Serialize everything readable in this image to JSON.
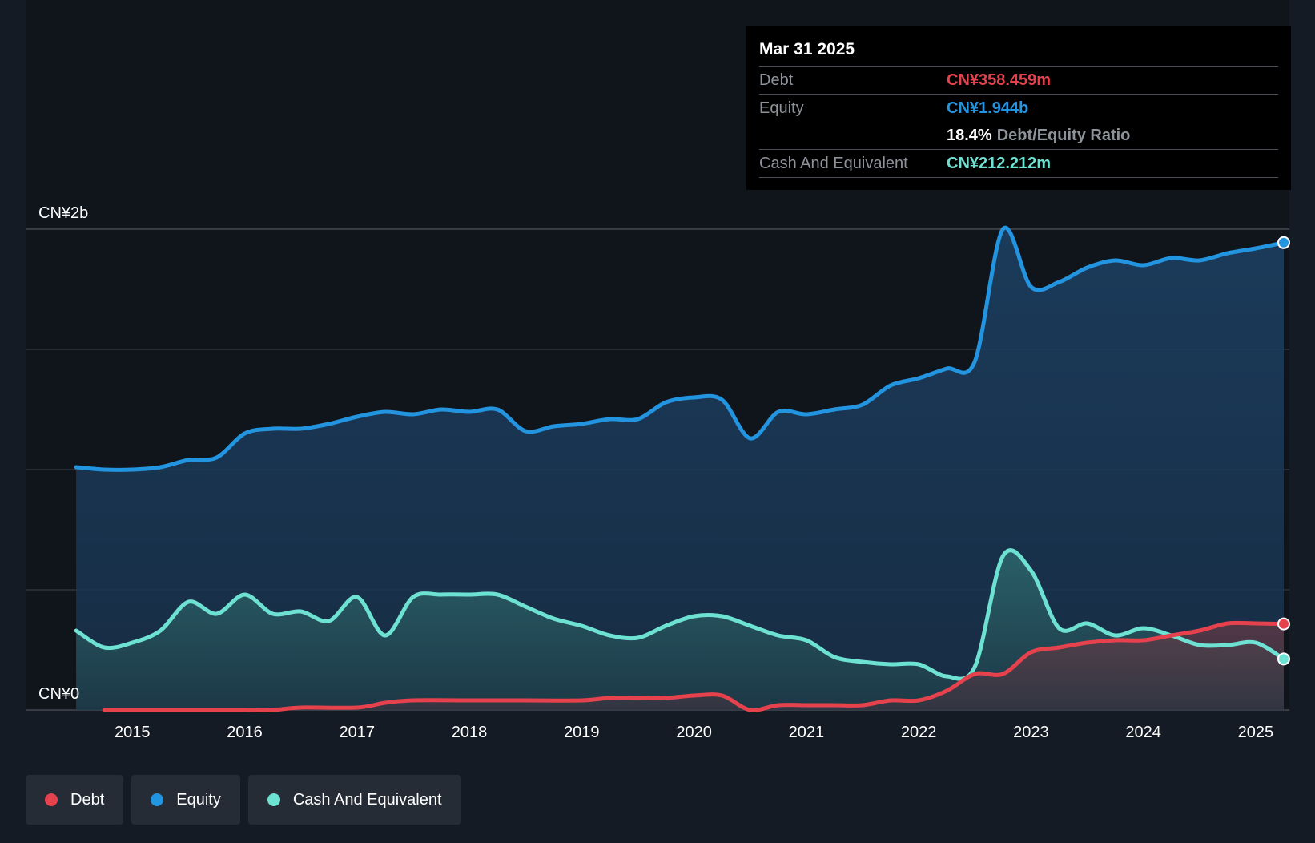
{
  "tooltip": {
    "date": "Mar 31 2025",
    "debt_label": "Debt",
    "debt_value": "CN¥358.459m",
    "equity_label": "Equity",
    "equity_value": "CN¥1.944b",
    "ratio_value": "18.4%",
    "ratio_label": "Debt/Equity Ratio",
    "cash_label": "Cash And Equivalent",
    "cash_value": "CN¥212.212m"
  },
  "legend": [
    {
      "label": "Debt",
      "color": "#e5424d"
    },
    {
      "label": "Equity",
      "color": "#2394df"
    },
    {
      "label": "Cash And Equivalent",
      "color": "#6ee2d2"
    }
  ],
  "colors": {
    "background": "#151b24",
    "plot_background": "#10151c",
    "debt": "#e5424d",
    "equity": "#2394df",
    "cash": "#6ee2d2",
    "grid": "#3a404a"
  },
  "chart_data": {
    "type": "area",
    "y_unit": "CN¥ billions",
    "ylim": [
      0,
      2.0
    ],
    "y_tick_labels": [
      {
        "value": 2.0,
        "label": "CN¥2b"
      },
      {
        "value": 0,
        "label": "CN¥0"
      }
    ],
    "gridlines": [
      0,
      0.5,
      1.0,
      1.5,
      2.0
    ],
    "xlim": [
      2014.05,
      2025.3
    ],
    "x_ticks": [
      {
        "value": 2015,
        "label": "2015"
      },
      {
        "value": 2016,
        "label": "2016"
      },
      {
        "value": 2017,
        "label": "2017"
      },
      {
        "value": 2018,
        "label": "2018"
      },
      {
        "value": 2019,
        "label": "2019"
      },
      {
        "value": 2020,
        "label": "2020"
      },
      {
        "value": 2021,
        "label": "2021"
      },
      {
        "value": 2022,
        "label": "2022"
      },
      {
        "value": 2023,
        "label": "2023"
      },
      {
        "value": 2024,
        "label": "2024"
      },
      {
        "value": 2025,
        "label": "2025"
      }
    ],
    "series": [
      {
        "name": "Equity",
        "color": "#2394df",
        "points": [
          [
            2014.5,
            1.01
          ],
          [
            2014.75,
            1.0
          ],
          [
            2015.0,
            1.0
          ],
          [
            2015.25,
            1.01
          ],
          [
            2015.5,
            1.04
          ],
          [
            2015.75,
            1.05
          ],
          [
            2016.0,
            1.15
          ],
          [
            2016.25,
            1.17
          ],
          [
            2016.5,
            1.17
          ],
          [
            2016.75,
            1.19
          ],
          [
            2017.0,
            1.22
          ],
          [
            2017.25,
            1.24
          ],
          [
            2017.5,
            1.23
          ],
          [
            2017.75,
            1.25
          ],
          [
            2018.0,
            1.24
          ],
          [
            2018.25,
            1.25
          ],
          [
            2018.5,
            1.16
          ],
          [
            2018.75,
            1.18
          ],
          [
            2019.0,
            1.19
          ],
          [
            2019.25,
            1.21
          ],
          [
            2019.5,
            1.21
          ],
          [
            2019.75,
            1.28
          ],
          [
            2020.0,
            1.3
          ],
          [
            2020.25,
            1.29
          ],
          [
            2020.5,
            1.13
          ],
          [
            2020.75,
            1.24
          ],
          [
            2021.0,
            1.23
          ],
          [
            2021.25,
            1.25
          ],
          [
            2021.5,
            1.27
          ],
          [
            2021.75,
            1.35
          ],
          [
            2022.0,
            1.38
          ],
          [
            2022.25,
            1.42
          ],
          [
            2022.5,
            1.45
          ],
          [
            2022.75,
            2.0
          ],
          [
            2023.0,
            1.76
          ],
          [
            2023.25,
            1.78
          ],
          [
            2023.5,
            1.84
          ],
          [
            2023.75,
            1.87
          ],
          [
            2024.0,
            1.85
          ],
          [
            2024.25,
            1.88
          ],
          [
            2024.5,
            1.87
          ],
          [
            2024.75,
            1.9
          ],
          [
            2025.0,
            1.92
          ],
          [
            2025.25,
            1.944
          ]
        ]
      },
      {
        "name": "Cash And Equivalent",
        "color": "#6ee2d2",
        "points": [
          [
            2014.5,
            0.33
          ],
          [
            2014.75,
            0.26
          ],
          [
            2015.0,
            0.28
          ],
          [
            2015.25,
            0.33
          ],
          [
            2015.5,
            0.45
          ],
          [
            2015.75,
            0.4
          ],
          [
            2016.0,
            0.48
          ],
          [
            2016.25,
            0.4
          ],
          [
            2016.5,
            0.41
          ],
          [
            2016.75,
            0.37
          ],
          [
            2017.0,
            0.47
          ],
          [
            2017.25,
            0.31
          ],
          [
            2017.5,
            0.47
          ],
          [
            2017.75,
            0.48
          ],
          [
            2018.0,
            0.48
          ],
          [
            2018.25,
            0.48
          ],
          [
            2018.5,
            0.43
          ],
          [
            2018.75,
            0.38
          ],
          [
            2019.0,
            0.35
          ],
          [
            2019.25,
            0.31
          ],
          [
            2019.5,
            0.3
          ],
          [
            2019.75,
            0.35
          ],
          [
            2020.0,
            0.39
          ],
          [
            2020.25,
            0.39
          ],
          [
            2020.5,
            0.35
          ],
          [
            2020.75,
            0.31
          ],
          [
            2021.0,
            0.29
          ],
          [
            2021.25,
            0.22
          ],
          [
            2021.5,
            0.2
          ],
          [
            2021.75,
            0.19
          ],
          [
            2022.0,
            0.19
          ],
          [
            2022.25,
            0.14
          ],
          [
            2022.5,
            0.18
          ],
          [
            2022.75,
            0.64
          ],
          [
            2023.0,
            0.58
          ],
          [
            2023.25,
            0.34
          ],
          [
            2023.5,
            0.36
          ],
          [
            2023.75,
            0.31
          ],
          [
            2024.0,
            0.34
          ],
          [
            2024.25,
            0.31
          ],
          [
            2024.5,
            0.27
          ],
          [
            2024.75,
            0.27
          ],
          [
            2025.0,
            0.28
          ],
          [
            2025.25,
            0.212
          ]
        ]
      },
      {
        "name": "Debt",
        "color": "#e5424d",
        "points": [
          [
            2014.75,
            0.0
          ],
          [
            2015.0,
            0.0
          ],
          [
            2015.5,
            0.0
          ],
          [
            2016.0,
            0.0
          ],
          [
            2016.25,
            0.0
          ],
          [
            2016.5,
            0.01
          ],
          [
            2017.0,
            0.01
          ],
          [
            2017.25,
            0.03
          ],
          [
            2017.5,
            0.04
          ],
          [
            2018.0,
            0.04
          ],
          [
            2018.5,
            0.04
          ],
          [
            2019.0,
            0.04
          ],
          [
            2019.25,
            0.05
          ],
          [
            2019.5,
            0.05
          ],
          [
            2019.75,
            0.05
          ],
          [
            2020.0,
            0.06
          ],
          [
            2020.25,
            0.06
          ],
          [
            2020.5,
            0.0
          ],
          [
            2020.75,
            0.02
          ],
          [
            2021.0,
            0.02
          ],
          [
            2021.25,
            0.02
          ],
          [
            2021.5,
            0.02
          ],
          [
            2021.75,
            0.04
          ],
          [
            2022.0,
            0.04
          ],
          [
            2022.25,
            0.08
          ],
          [
            2022.5,
            0.15
          ],
          [
            2022.75,
            0.15
          ],
          [
            2023.0,
            0.24
          ],
          [
            2023.25,
            0.26
          ],
          [
            2023.5,
            0.28
          ],
          [
            2023.75,
            0.29
          ],
          [
            2024.0,
            0.29
          ],
          [
            2024.25,
            0.31
          ],
          [
            2024.5,
            0.33
          ],
          [
            2024.75,
            0.36
          ],
          [
            2025.0,
            0.36
          ],
          [
            2025.25,
            0.358
          ]
        ]
      }
    ]
  }
}
